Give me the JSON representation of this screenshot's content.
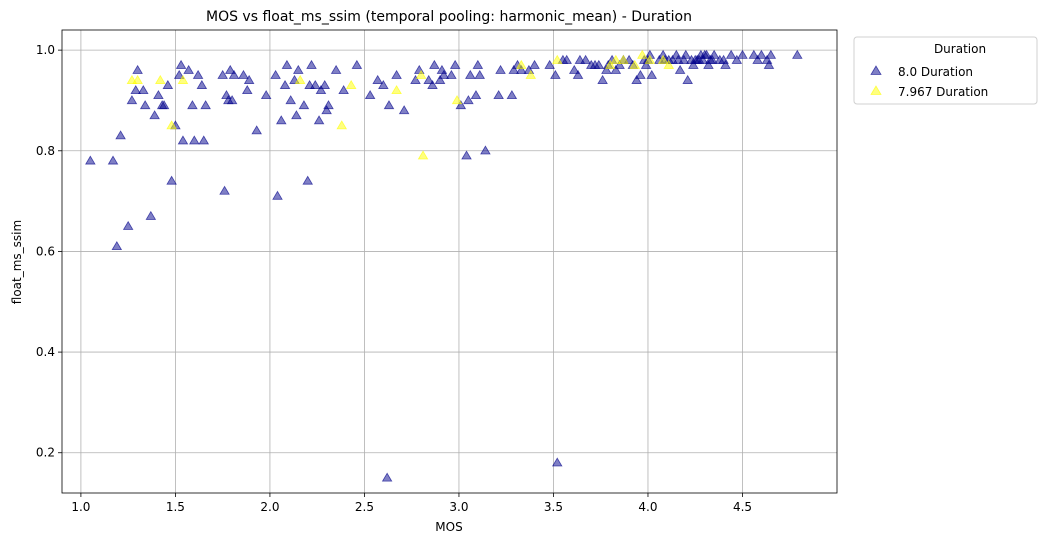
{
  "chart_data": {
    "type": "scatter",
    "title": "MOS vs float_ms_ssim (temporal pooling: harmonic_mean) - Duration",
    "xlabel": "MOS",
    "ylabel": "float_ms_ssim",
    "xlim": [
      0.9,
      5.0
    ],
    "ylim": [
      0.12,
      1.04
    ],
    "xticks": [
      1.0,
      1.5,
      2.0,
      2.5,
      3.0,
      3.5,
      4.0,
      4.5
    ],
    "xtick_labels": [
      "1.0",
      "1.5",
      "2.0",
      "2.5",
      "3.0",
      "3.5",
      "4.0",
      "4.5"
    ],
    "yticks": [
      0.2,
      0.4,
      0.6,
      0.8,
      1.0
    ],
    "ytick_labels": [
      "0.2",
      "0.4",
      "0.6",
      "0.8",
      "1.0"
    ],
    "grid": true,
    "marker": "triangle-up",
    "legend": {
      "title": "Duration",
      "placement": "outside-top-right"
    },
    "series": [
      {
        "name": "8.0 Duration",
        "color": "#00008b",
        "opacity": 0.5,
        "points": [
          [
            1.05,
            0.78
          ],
          [
            1.17,
            0.78
          ],
          [
            1.19,
            0.61
          ],
          [
            1.21,
            0.83
          ],
          [
            1.25,
            0.65
          ],
          [
            1.27,
            0.9
          ],
          [
            1.29,
            0.92
          ],
          [
            1.3,
            0.96
          ],
          [
            1.33,
            0.92
          ],
          [
            1.34,
            0.89
          ],
          [
            1.37,
            0.67
          ],
          [
            1.39,
            0.87
          ],
          [
            1.41,
            0.91
          ],
          [
            1.43,
            0.89
          ],
          [
            1.44,
            0.89
          ],
          [
            1.46,
            0.93
          ],
          [
            1.48,
            0.74
          ],
          [
            1.5,
            0.85
          ],
          [
            1.52,
            0.95
          ],
          [
            1.53,
            0.97
          ],
          [
            1.54,
            0.82
          ],
          [
            1.57,
            0.96
          ],
          [
            1.59,
            0.89
          ],
          [
            1.6,
            0.82
          ],
          [
            1.62,
            0.95
          ],
          [
            1.64,
            0.93
          ],
          [
            1.65,
            0.82
          ],
          [
            1.66,
            0.89
          ],
          [
            1.75,
            0.95
          ],
          [
            1.76,
            0.72
          ],
          [
            1.77,
            0.91
          ],
          [
            1.78,
            0.9
          ],
          [
            1.79,
            0.96
          ],
          [
            1.8,
            0.9
          ],
          [
            1.81,
            0.95
          ],
          [
            1.86,
            0.95
          ],
          [
            1.88,
            0.92
          ],
          [
            1.89,
            0.94
          ],
          [
            1.93,
            0.84
          ],
          [
            1.98,
            0.91
          ],
          [
            2.03,
            0.95
          ],
          [
            2.04,
            0.71
          ],
          [
            2.06,
            0.86
          ],
          [
            2.08,
            0.93
          ],
          [
            2.09,
            0.97
          ],
          [
            2.11,
            0.9
          ],
          [
            2.13,
            0.94
          ],
          [
            2.14,
            0.87
          ],
          [
            2.15,
            0.96
          ],
          [
            2.18,
            0.89
          ],
          [
            2.2,
            0.74
          ],
          [
            2.21,
            0.93
          ],
          [
            2.22,
            0.97
          ],
          [
            2.24,
            0.93
          ],
          [
            2.26,
            0.86
          ],
          [
            2.27,
            0.92
          ],
          [
            2.29,
            0.93
          ],
          [
            2.3,
            0.88
          ],
          [
            2.31,
            0.89
          ],
          [
            2.35,
            0.96
          ],
          [
            2.39,
            0.92
          ],
          [
            2.46,
            0.97
          ],
          [
            2.53,
            0.91
          ],
          [
            2.57,
            0.94
          ],
          [
            2.6,
            0.93
          ],
          [
            2.62,
            0.15
          ],
          [
            2.63,
            0.89
          ],
          [
            2.67,
            0.95
          ],
          [
            2.71,
            0.88
          ],
          [
            2.77,
            0.94
          ],
          [
            2.79,
            0.96
          ],
          [
            2.84,
            0.94
          ],
          [
            2.86,
            0.93
          ],
          [
            2.87,
            0.97
          ],
          [
            2.9,
            0.94
          ],
          [
            2.91,
            0.96
          ],
          [
            2.92,
            0.95
          ],
          [
            2.96,
            0.95
          ],
          [
            2.98,
            0.97
          ],
          [
            3.01,
            0.89
          ],
          [
            3.04,
            0.79
          ],
          [
            3.05,
            0.9
          ],
          [
            3.06,
            0.95
          ],
          [
            3.09,
            0.91
          ],
          [
            3.1,
            0.97
          ],
          [
            3.11,
            0.95
          ],
          [
            3.14,
            0.8
          ],
          [
            3.21,
            0.91
          ],
          [
            3.22,
            0.96
          ],
          [
            3.28,
            0.91
          ],
          [
            3.29,
            0.96
          ],
          [
            3.31,
            0.97
          ],
          [
            3.33,
            0.96
          ],
          [
            3.37,
            0.96
          ],
          [
            3.4,
            0.97
          ],
          [
            3.48,
            0.97
          ],
          [
            3.51,
            0.95
          ],
          [
            3.52,
            0.18
          ],
          [
            3.55,
            0.98
          ],
          [
            3.57,
            0.98
          ],
          [
            3.61,
            0.96
          ],
          [
            3.63,
            0.95
          ],
          [
            3.64,
            0.98
          ],
          [
            3.67,
            0.98
          ],
          [
            3.7,
            0.97
          ],
          [
            3.72,
            0.97
          ],
          [
            3.74,
            0.97
          ],
          [
            3.76,
            0.94
          ],
          [
            3.78,
            0.96
          ],
          [
            3.79,
            0.97
          ],
          [
            3.81,
            0.98
          ],
          [
            3.83,
            0.96
          ],
          [
            3.85,
            0.97
          ],
          [
            3.87,
            0.98
          ],
          [
            3.9,
            0.98
          ],
          [
            3.92,
            0.97
          ],
          [
            3.94,
            0.94
          ],
          [
            3.96,
            0.95
          ],
          [
            3.98,
            0.98
          ],
          [
            3.99,
            0.97
          ],
          [
            4.0,
            0.98
          ],
          [
            4.01,
            0.99
          ],
          [
            4.02,
            0.95
          ],
          [
            4.06,
            0.98
          ],
          [
            4.08,
            0.99
          ],
          [
            4.09,
            0.98
          ],
          [
            4.11,
            0.98
          ],
          [
            4.13,
            0.98
          ],
          [
            4.15,
            0.99
          ],
          [
            4.16,
            0.98
          ],
          [
            4.17,
            0.96
          ],
          [
            4.19,
            0.98
          ],
          [
            4.2,
            0.99
          ],
          [
            4.21,
            0.94
          ],
          [
            4.23,
            0.98
          ],
          [
            4.24,
            0.97
          ],
          [
            4.25,
            0.98
          ],
          [
            4.26,
            0.98
          ],
          [
            4.27,
            0.98
          ],
          [
            4.28,
            0.99
          ],
          [
            4.29,
            0.98
          ],
          [
            4.3,
            0.99
          ],
          [
            4.31,
            0.99
          ],
          [
            4.32,
            0.97
          ],
          [
            4.33,
            0.98
          ],
          [
            4.34,
            0.98
          ],
          [
            4.35,
            0.99
          ],
          [
            4.38,
            0.98
          ],
          [
            4.4,
            0.98
          ],
          [
            4.41,
            0.97
          ],
          [
            4.44,
            0.99
          ],
          [
            4.47,
            0.98
          ],
          [
            4.5,
            0.99
          ],
          [
            4.56,
            0.99
          ],
          [
            4.58,
            0.98
          ],
          [
            4.6,
            0.99
          ],
          [
            4.63,
            0.98
          ],
          [
            4.64,
            0.97
          ],
          [
            4.65,
            0.99
          ],
          [
            4.79,
            0.99
          ]
        ]
      },
      {
        "name": "7.967 Duration",
        "color": "#ffff00",
        "opacity": 0.5,
        "points": [
          [
            1.27,
            0.94
          ],
          [
            1.3,
            0.94
          ],
          [
            1.42,
            0.94
          ],
          [
            1.48,
            0.85
          ],
          [
            1.54,
            0.94
          ],
          [
            2.16,
            0.94
          ],
          [
            2.38,
            0.85
          ],
          [
            2.43,
            0.93
          ],
          [
            2.67,
            0.92
          ],
          [
            2.8,
            0.95
          ],
          [
            2.81,
            0.79
          ],
          [
            2.99,
            0.9
          ],
          [
            3.33,
            0.97
          ],
          [
            3.38,
            0.95
          ],
          [
            3.52,
            0.98
          ],
          [
            3.8,
            0.97
          ],
          [
            3.83,
            0.98
          ],
          [
            3.87,
            0.98
          ],
          [
            3.93,
            0.97
          ],
          [
            3.97,
            0.99
          ],
          [
            4.01,
            0.98
          ],
          [
            4.08,
            0.98
          ],
          [
            4.11,
            0.97
          ]
        ]
      }
    ]
  }
}
